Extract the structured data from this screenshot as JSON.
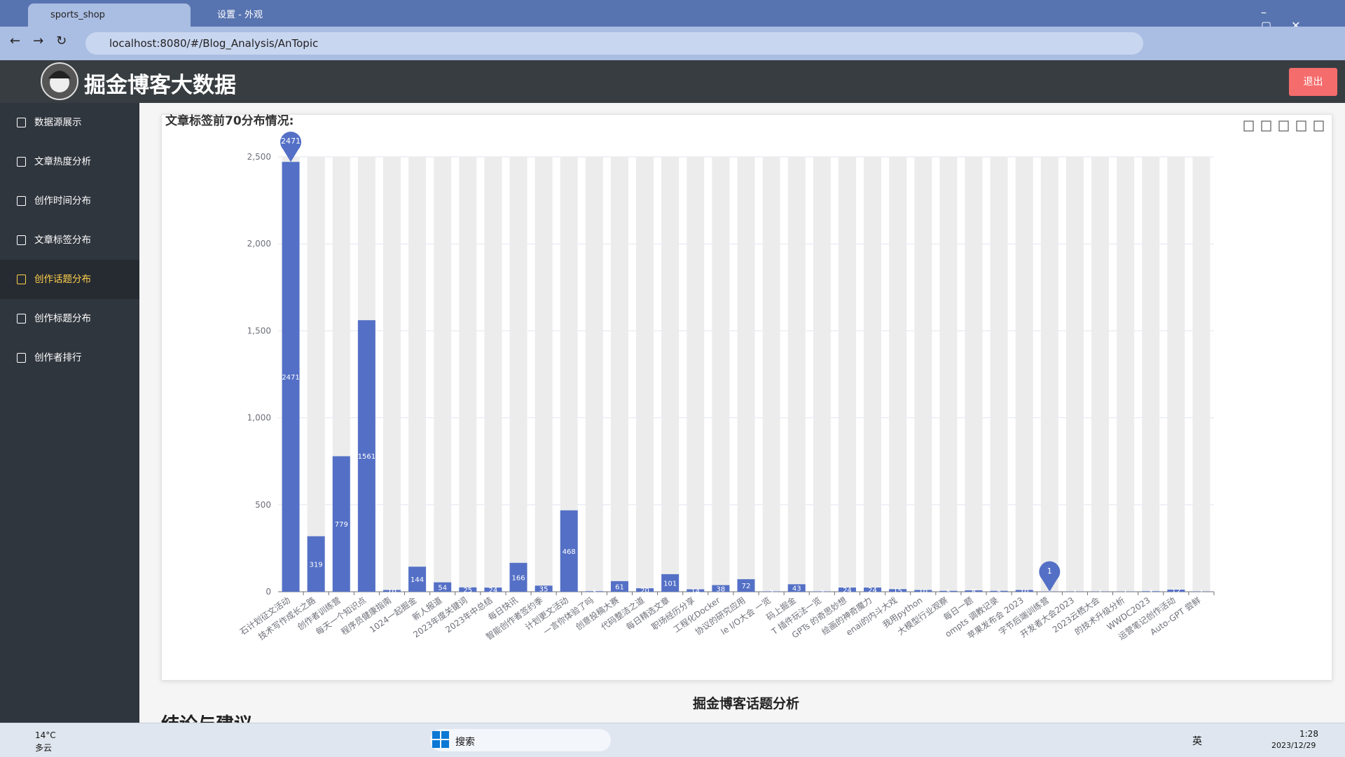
{
  "browser": {
    "tabs": [
      "sports_shop",
      "设置 - 外观"
    ],
    "url": "localhost:8080/#/Blog_Analysis/AnTopic"
  },
  "app": {
    "title": "掘金博客大数据",
    "logout": "退出"
  },
  "sidebar": {
    "items": [
      "数据源展示",
      "文章热度分析",
      "创作时间分布",
      "文章标签分布",
      "创作话题分布",
      "创作标题分布",
      "创作者排行"
    ]
  },
  "chart_data": {
    "type": "bar",
    "title": "文章标签前70分布情况:",
    "categories": [
      "石计划征文活动",
      "技术写作成长之路",
      "创作者训练营",
      "每天一个知识点",
      "程序员健康指南",
      "1024一起掘金",
      "新人报道",
      "2023年度关键词",
      "2023年中总结",
      "每日快讯",
      "智能创作者签约季",
      "计划更文活动",
      "一言你体验了吗",
      "创意投稿大赛",
      "代码整洁之道",
      "每日精选文章",
      "职场经历分享",
      "工程化Docker",
      "协议的研究应用",
      "le I/O大会 一览",
      "码上掘金",
      "T 插件玩法一览",
      "GPTs 的奇思妙想",
      "绘画的神奇魔力",
      "enai的内斗大戏",
      "我用python",
      "大模型行业观察",
      "每日一题",
      "ompts 调教记录",
      "苹果发布会 2023",
      "字节后端训练营",
      "开发者大会2023",
      "2023云栖大会",
      "的技术升级分析",
      "WWDC2023",
      "运营笔记创作活动",
      "Auto-GPT 尝鲜"
    ],
    "values": [
      2471,
      319,
      779,
      1561,
      10,
      144,
      54,
      25,
      24,
      166,
      35,
      468,
      3,
      61,
      20,
      101,
      14,
      38,
      72,
      2,
      43,
      2,
      24,
      24,
      15,
      10,
      5,
      8,
      5,
      10,
      1,
      1,
      1,
      1,
      3,
      12,
      1
    ],
    "color": "#5470c6",
    "show_background": true,
    "ylim": [
      0,
      2500
    ],
    "yticks": [
      0,
      500,
      {
        "value": 1000,
        "label": "1,000"
      },
      {
        "value": 1500,
        "label": "1,500"
      },
      {
        "value": 2000,
        "label": "2,000"
      },
      {
        "value": 2500,
        "label": "2,500"
      }
    ],
    "grid": true,
    "mark_max": 0,
    "mark_min": 30
  },
  "caption": "掘金博客话题分析",
  "section_heading": "结论与建议",
  "taskbar": {
    "temperature": "14°C",
    "weather": "多云",
    "search": "搜索",
    "ime": "英",
    "time": "1:28",
    "date": "2023/12/29"
  }
}
